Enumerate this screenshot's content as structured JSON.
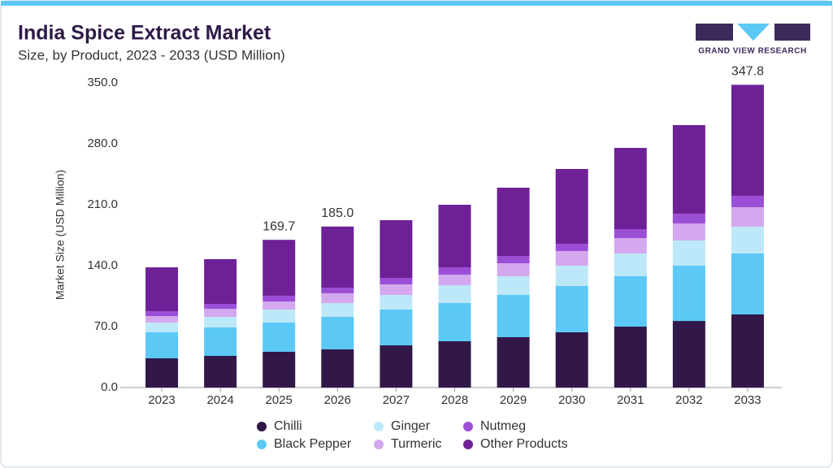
{
  "chart_data": {
    "type": "stacked_bar",
    "title": "India Spice Extract Market",
    "subtitle": "Size, by Product, 2023 - 2033 (USD Million)",
    "logo_text": "GRAND VIEW RESEARCH",
    "y_label": "Market Size (USD Million)",
    "categories": [
      "2023",
      "2024",
      "2025",
      "2026",
      "2027",
      "2028",
      "2029",
      "2030",
      "2031",
      "2032",
      "2033"
    ],
    "series": [
      {
        "name": "Chilli",
        "color": "#311849",
        "values": [
          33.6,
          36.4,
          41.1,
          43.9,
          48.5,
          53.2,
          57.9,
          63.5,
          70.0,
          76.5,
          84.0
        ]
      },
      {
        "name": "Black Pepper",
        "color": "#5bc8f5",
        "values": [
          29.9,
          32.7,
          33.6,
          37.3,
          41.1,
          43.9,
          48.5,
          53.2,
          57.9,
          63.5,
          70.0
        ]
      },
      {
        "name": "Ginger",
        "color": "#bde8fa",
        "values": [
          11.2,
          12.1,
          14.9,
          15.9,
          16.8,
          20.5,
          21.5,
          23.3,
          26.1,
          28.9,
          30.8
        ]
      },
      {
        "name": "Turmeric",
        "color": "#d4a8ee",
        "values": [
          7.4,
          9.3,
          9.3,
          11.2,
          12.1,
          12.1,
          14.9,
          16.8,
          17.7,
          19.6,
          22.4
        ]
      },
      {
        "name": "Nutmeg",
        "color": "#9b4fd6",
        "values": [
          5.6,
          5.6,
          6.6,
          6.5,
          7.5,
          8.4,
          8.4,
          8.4,
          10.3,
          11.2,
          13.1
        ]
      },
      {
        "name": "Other Products",
        "color": "#6e2196",
        "values": [
          50.4,
          51.4,
          64.2,
          70.2,
          66.3,
          71.9,
          78.4,
          85.9,
          93.3,
          101.8,
          127.5
        ]
      }
    ],
    "total_labels": [
      null,
      null,
      "169.7",
      "185.0",
      null,
      null,
      null,
      null,
      null,
      null,
      "347.8"
    ],
    "ylim": [
      0,
      350
    ],
    "yticks": [
      {
        "value": 0,
        "label": "0.0"
      },
      {
        "value": 70,
        "label": "70.0"
      },
      {
        "value": 140,
        "label": "140.0"
      },
      {
        "value": 210,
        "label": "210.0"
      },
      {
        "value": 280,
        "label": "280.0"
      },
      {
        "value": 350,
        "label": "350.0"
      }
    ],
    "grid": false
  }
}
